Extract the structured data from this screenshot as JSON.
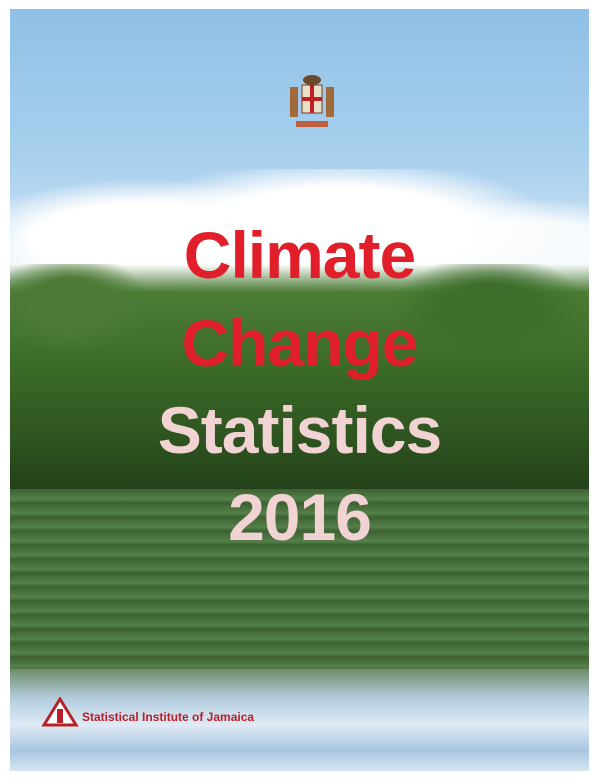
{
  "cover": {
    "title_lines": [
      "Climate",
      "Change",
      "Statistics",
      "2016"
    ],
    "publisher": "Statistical Institute of Jamaica"
  }
}
